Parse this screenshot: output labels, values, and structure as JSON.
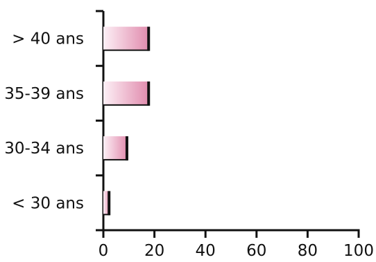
{
  "chart_data": {
    "type": "bar",
    "orientation": "horizontal",
    "categories": [
      "> 40 ans",
      "35-39 ans",
      "30-34 ans",
      "< 30 ans"
    ],
    "values": [
      18,
      18,
      9.5,
      2.5
    ],
    "xlim": [
      0,
      100
    ],
    "xticks": [
      "0",
      "20",
      "40",
      "60",
      "80",
      "100"
    ],
    "title": "",
    "xlabel": "",
    "ylabel": "",
    "grid": false,
    "legend": "none",
    "bar_gradient": [
      "#fdf0f6",
      "#e08aac"
    ],
    "bar_edge": "#111111"
  }
}
